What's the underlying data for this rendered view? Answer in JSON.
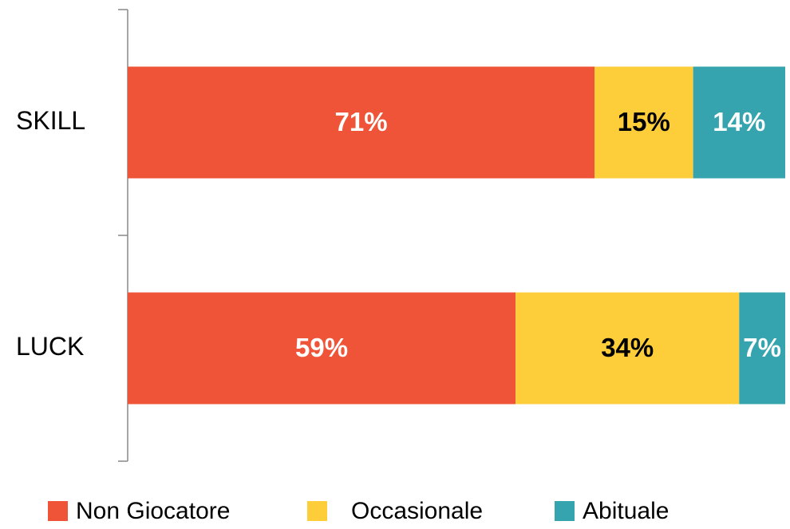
{
  "chart_data": {
    "type": "stacked-barh",
    "categories": [
      "SKILL",
      "LUCK"
    ],
    "series": [
      {
        "name": "Non Giocatore",
        "color": "#ef5438",
        "label_color": "#ffffff",
        "values": [
          71,
          59
        ],
        "value_labels": [
          "71%",
          "59%"
        ]
      },
      {
        "name": "Occasionale",
        "color": "#fdcd3a",
        "label_color": "#000000",
        "values": [
          15,
          34
        ],
        "value_labels": [
          "15%",
          "34%"
        ]
      },
      {
        "name": "Abituale",
        "color": "#35a4ae",
        "label_color": "#ffffff",
        "values": [
          14,
          7
        ],
        "value_labels": [
          "14%",
          "7%"
        ]
      }
    ],
    "xlim": [
      0,
      100
    ],
    "legend": "bottom"
  }
}
